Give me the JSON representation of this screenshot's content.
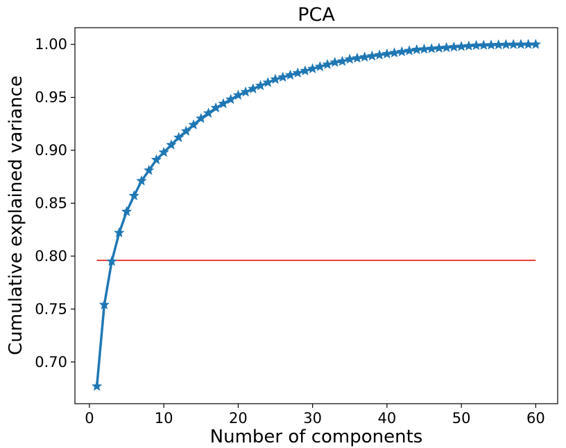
{
  "chart_data": {
    "type": "line",
    "title": "PCA",
    "xlabel": "Number of components",
    "ylabel": "Cumulative explained variance",
    "xlim": [
      -1.95,
      62.95
    ],
    "ylim": [
      0.6606,
      1.0158
    ],
    "xticks": [
      0,
      10,
      20,
      30,
      40,
      50,
      60
    ],
    "yticks": [
      0.7,
      0.75,
      0.8,
      0.85,
      0.9,
      0.95,
      1.0
    ],
    "xtick_labels": [
      "0",
      "10",
      "20",
      "30",
      "40",
      "50",
      "60"
    ],
    "ytick_labels": [
      "0.70",
      "0.75",
      "0.80",
      "0.85",
      "0.90",
      "0.95",
      "1.00"
    ],
    "grid": false,
    "legend": "none",
    "series": [
      {
        "marker": "star",
        "color": "#1f77b4",
        "x": [
          1,
          2,
          3,
          4,
          5,
          6,
          7,
          8,
          9,
          10,
          11,
          12,
          13,
          14,
          15,
          16,
          17,
          18,
          19,
          20,
          21,
          22,
          23,
          24,
          25,
          26,
          27,
          28,
          29,
          30,
          31,
          32,
          33,
          34,
          35,
          36,
          37,
          38,
          39,
          40,
          41,
          42,
          43,
          44,
          45,
          46,
          47,
          48,
          49,
          50,
          51,
          52,
          53,
          54,
          55,
          56,
          57,
          58,
          59,
          60
        ],
        "y": [
          0.677,
          0.754,
          0.795,
          0.822,
          0.842,
          0.857,
          0.871,
          0.881,
          0.891,
          0.898,
          0.905,
          0.912,
          0.918,
          0.924,
          0.93,
          0.935,
          0.94,
          0.944,
          0.948,
          0.952,
          0.955,
          0.958,
          0.961,
          0.964,
          0.967,
          0.969,
          0.971,
          0.973,
          0.975,
          0.977,
          0.979,
          0.981,
          0.983,
          0.984,
          0.986,
          0.987,
          0.988,
          0.989,
          0.99,
          0.991,
          0.992,
          0.993,
          0.994,
          0.995,
          0.9955,
          0.996,
          0.9965,
          0.997,
          0.9975,
          0.998,
          0.9985,
          0.999,
          0.9992,
          0.9994,
          0.9996,
          0.9998,
          0.9999,
          0.99995,
          1.0,
          1.0
        ]
      }
    ],
    "reference_lines": [
      {
        "orientation": "horizontal",
        "y": 0.796,
        "x_start": 1,
        "x_end": 60,
        "color": "#e8403a"
      }
    ]
  }
}
